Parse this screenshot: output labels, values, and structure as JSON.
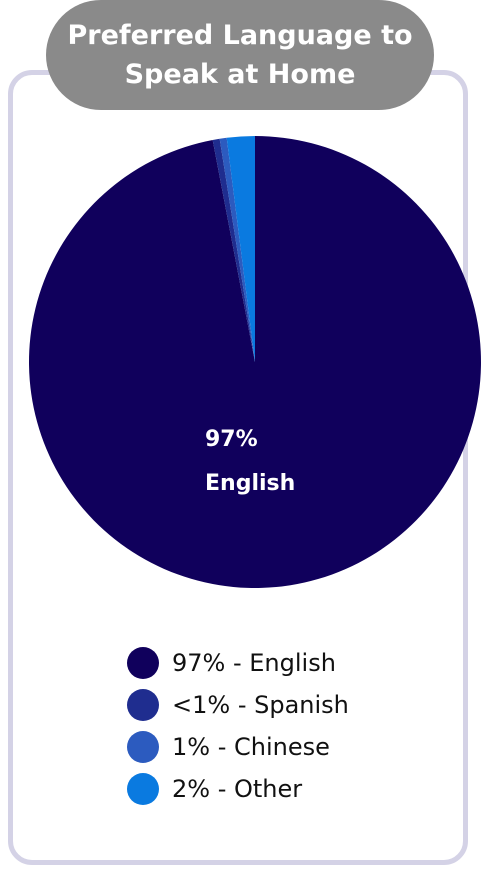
{
  "title": "Preferred Language to Speak at Home",
  "title_lines": [
    "Preferred Language to",
    "Speak at Home"
  ],
  "colors": {
    "card_border": "#d4d2e6",
    "title_badge": "#8a8a8a",
    "english": "#10005c",
    "spanish": "#1f2d8f",
    "chinese": "#2c5bbf",
    "other": "#0a7ae0"
  },
  "chart_data": {
    "type": "pie",
    "title": "Preferred Language to Speak at Home",
    "slices": [
      {
        "name": "English",
        "value": 97,
        "display": "97% - English"
      },
      {
        "name": "Spanish",
        "value": 0.5,
        "display": "<1% - Spanish"
      },
      {
        "name": "Chinese",
        "value": 0.5,
        "display": "1% - Chinese"
      },
      {
        "name": "Other",
        "value": 2,
        "display": "2% - Other"
      }
    ],
    "center_label": {
      "percent": "97%",
      "name": "English"
    },
    "legend_position": "bottom"
  }
}
